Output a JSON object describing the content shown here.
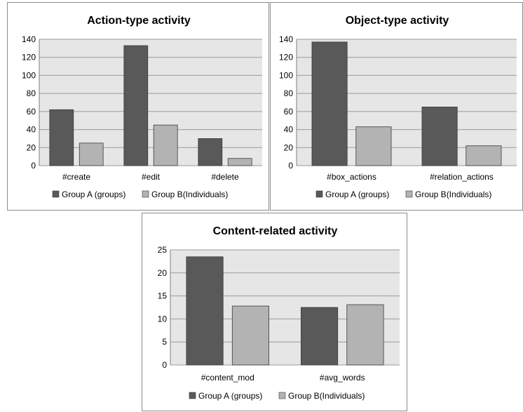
{
  "colors": {
    "group_a": "#595959",
    "group_b": "#b3b3b3",
    "plot_bg": "#e6e6e6",
    "grid": "#9a9a9a",
    "bar_stroke": "#3a3a3a"
  },
  "chart_data": [
    {
      "type": "bar",
      "title": "Action-type activity",
      "xlabel": "",
      "ylabel": "",
      "categories": [
        "#create",
        "#edit",
        "#delete"
      ],
      "series": [
        {
          "name": "Group A (groups)",
          "values": [
            62,
            133,
            30
          ]
        },
        {
          "name": "Group B(Individuals)",
          "values": [
            25,
            45,
            8
          ]
        }
      ],
      "ylim": [
        0,
        140
      ],
      "yticks": [
        0,
        20,
        40,
        60,
        80,
        100,
        120,
        140
      ],
      "grid": true,
      "legend": "bottom"
    },
    {
      "type": "bar",
      "title": "Object-type activity",
      "xlabel": "",
      "ylabel": "",
      "categories": [
        "#box_actions",
        "#relation_actions"
      ],
      "series": [
        {
          "name": "Group A (groups)",
          "values": [
            137,
            65
          ]
        },
        {
          "name": "Group B(Individuals)",
          "values": [
            43,
            22
          ]
        }
      ],
      "ylim": [
        0,
        140
      ],
      "yticks": [
        0,
        20,
        40,
        60,
        80,
        100,
        120,
        140
      ],
      "grid": true,
      "legend": "bottom"
    },
    {
      "type": "bar",
      "title": "Content-related activity",
      "xlabel": "",
      "ylabel": "",
      "categories": [
        "#content_mod",
        "#avg_words"
      ],
      "series": [
        {
          "name": "Group A (groups)",
          "values": [
            23.5,
            12.5
          ]
        },
        {
          "name": "Group B(Individuals)",
          "values": [
            12.8,
            13.1
          ]
        }
      ],
      "ylim": [
        0,
        25
      ],
      "yticks": [
        0,
        5,
        10,
        15,
        20,
        25
      ],
      "grid": true,
      "legend": "bottom"
    }
  ]
}
